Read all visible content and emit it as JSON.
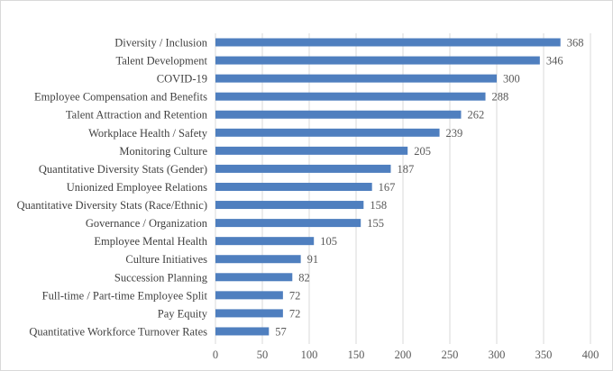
{
  "chart_data": {
    "type": "bar",
    "orientation": "horizontal",
    "title": "",
    "xlabel": "",
    "ylabel": "",
    "xlim": [
      0,
      400
    ],
    "xticks": [
      0,
      50,
      100,
      150,
      200,
      250,
      300,
      350,
      400
    ],
    "grid": true,
    "legend": "none",
    "bar_color": "#4f7fbf",
    "categories": [
      "Diversity / Inclusion",
      "Talent Development",
      "COVID-19",
      "Employee Compensation and Benefits",
      "Talent Attraction and Retention",
      "Workplace Health / Safety",
      "Monitoring Culture",
      "Quantitative Diversity Stats (Gender)",
      "Unionized Employee Relations",
      "Quantitative Diversity Stats (Race/Ethnic)",
      "Governance / Organization",
      "Employee Mental Health",
      "Culture Initiatives",
      "Succession Planning",
      "Full-time / Part-time Employee Split",
      "Pay Equity",
      "Quantitative Workforce Turnover Rates"
    ],
    "values": [
      368,
      346,
      300,
      288,
      262,
      239,
      205,
      187,
      167,
      158,
      155,
      105,
      91,
      82,
      72,
      72,
      57
    ],
    "data_labels": true
  }
}
